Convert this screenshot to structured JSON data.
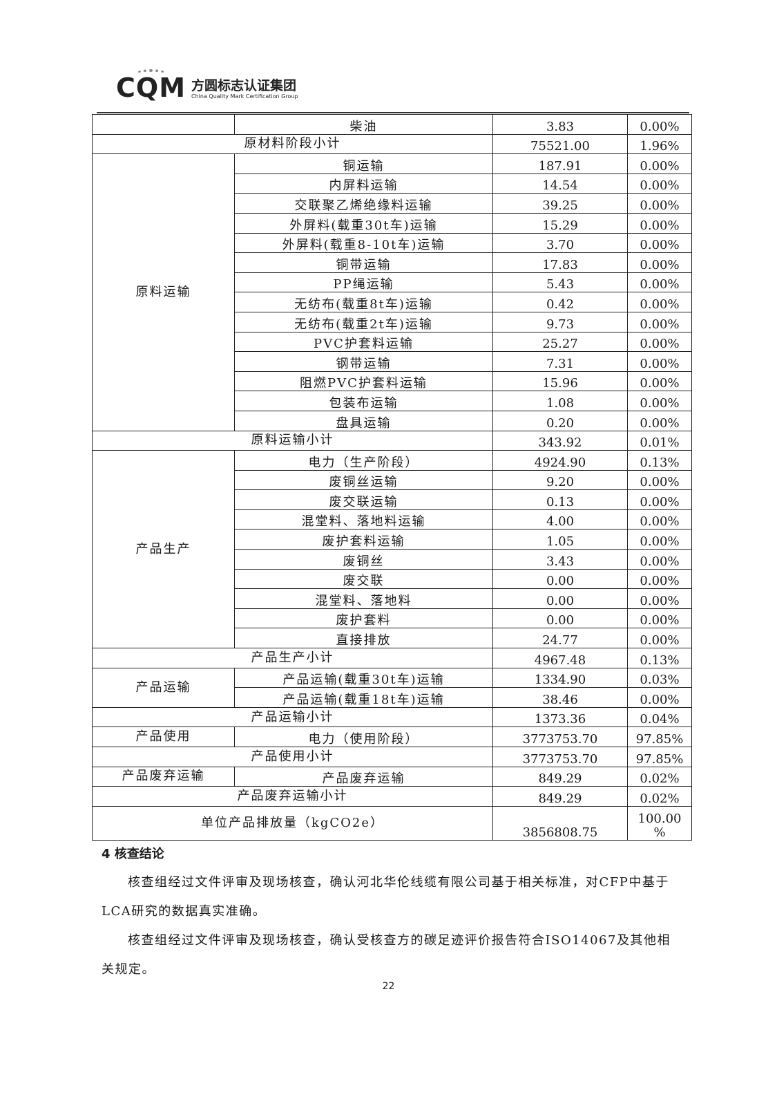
{
  "header": {
    "logo_mark": "CQM",
    "logo_cn": "方圆标志认证集团",
    "logo_en": "China Quality Mark Certification Group"
  },
  "table": {
    "sections": [
      {
        "type": "group",
        "label": "",
        "items": [
          {
            "name": "柴油",
            "value": "3.83",
            "pct": "0.00%"
          }
        ]
      },
      {
        "type": "subtotal",
        "label": "原材料阶段小计",
        "value": "75521.00",
        "pct": "1.96%"
      },
      {
        "type": "group",
        "label": "原料运输",
        "items": [
          {
            "name": "铜运输",
            "value": "187.91",
            "pct": "0.00%"
          },
          {
            "name": "内屏料运输",
            "value": "14.54",
            "pct": "0.00%"
          },
          {
            "name": "交联聚乙烯绝缘料运输",
            "value": "39.25",
            "pct": "0.00%"
          },
          {
            "name": "外屏料(载重30t车)运输",
            "value": "15.29",
            "pct": "0.00%"
          },
          {
            "name": "外屏料(载重8-10t车)运输",
            "value": "3.70",
            "pct": "0.00%"
          },
          {
            "name": "铜带运输",
            "value": "17.83",
            "pct": "0.00%"
          },
          {
            "name": "PP绳运输",
            "value": "5.43",
            "pct": "0.00%"
          },
          {
            "name": "无纺布(载重8t车)运输",
            "value": "0.42",
            "pct": "0.00%"
          },
          {
            "name": "无纺布(载重2t车)运输",
            "value": "9.73",
            "pct": "0.00%"
          },
          {
            "name": "PVC护套料运输",
            "value": "25.27",
            "pct": "0.00%"
          },
          {
            "name": "钢带运输",
            "value": "7.31",
            "pct": "0.00%"
          },
          {
            "name": "阻燃PVC护套料运输",
            "value": "15.96",
            "pct": "0.00%"
          },
          {
            "name": "包装布运输",
            "value": "1.08",
            "pct": "0.00%"
          },
          {
            "name": "盘具运输",
            "value": "0.20",
            "pct": "0.00%"
          }
        ]
      },
      {
        "type": "subtotal",
        "label": "原料运输小计",
        "value": "343.92",
        "pct": "0.01%"
      },
      {
        "type": "group",
        "label": "产品生产",
        "items": [
          {
            "name": "电力（生产阶段）",
            "value": "4924.90",
            "pct": "0.13%"
          },
          {
            "name": "废铜丝运输",
            "value": "9.20",
            "pct": "0.00%"
          },
          {
            "name": "废交联运输",
            "value": "0.13",
            "pct": "0.00%"
          },
          {
            "name": "混堂料、落地料运输",
            "value": "4.00",
            "pct": "0.00%"
          },
          {
            "name": "废护套料运输",
            "value": "1.05",
            "pct": "0.00%"
          },
          {
            "name": "废铜丝",
            "value": "3.43",
            "pct": "0.00%"
          },
          {
            "name": "废交联",
            "value": "0.00",
            "pct": "0.00%"
          },
          {
            "name": "混堂料、落地料",
            "value": "0.00",
            "pct": "0.00%"
          },
          {
            "name": "废护套料",
            "value": "0.00",
            "pct": "0.00%"
          },
          {
            "name": "直接排放",
            "value": "24.77",
            "pct": "0.00%"
          }
        ]
      },
      {
        "type": "subtotal",
        "label": "产品生产小计",
        "value": "4967.48",
        "pct": "0.13%"
      },
      {
        "type": "group",
        "label": "产品运输",
        "items": [
          {
            "name": "产品运输(载重30t车)运输",
            "value": "1334.90",
            "pct": "0.03%"
          },
          {
            "name": "产品运输(载重18t车)运输",
            "value": "38.46",
            "pct": "0.00%"
          }
        ]
      },
      {
        "type": "subtotal",
        "label": "产品运输小计",
        "value": "1373.36",
        "pct": "0.04%"
      },
      {
        "type": "group",
        "label": "产品使用",
        "items": [
          {
            "name": "电力（使用阶段）",
            "value": "3773753.70",
            "pct": "97.85%"
          }
        ]
      },
      {
        "type": "subtotal",
        "label": "产品使用小计",
        "value": "3773753.70",
        "pct": "97.85%"
      },
      {
        "type": "group",
        "label": "产品废弃运输",
        "items": [
          {
            "name": "产品废弃运输",
            "value": "849.29",
            "pct": "0.02%"
          }
        ]
      },
      {
        "type": "subtotal",
        "label": "产品废弃运输小计",
        "value": "849.29",
        "pct": "0.02%"
      }
    ],
    "total": {
      "label": "单位产品排放量（kgCO2e）",
      "value": "3856808.75",
      "pct_line1": "100.00",
      "pct_line2": "%"
    }
  },
  "conclusion": {
    "heading": "4 核查结论",
    "paragraphs": [
      "核查组经过文件评审及现场核查，确认河北华伦线缆有限公司基于相关标准，对CFP中基于LCA研究的数据真实准确。",
      "核查组经过文件评审及现场核查，确认受核查方的碳足迹评价报告符合ISO14067及其他相关规定。"
    ]
  },
  "page_number": "22"
}
